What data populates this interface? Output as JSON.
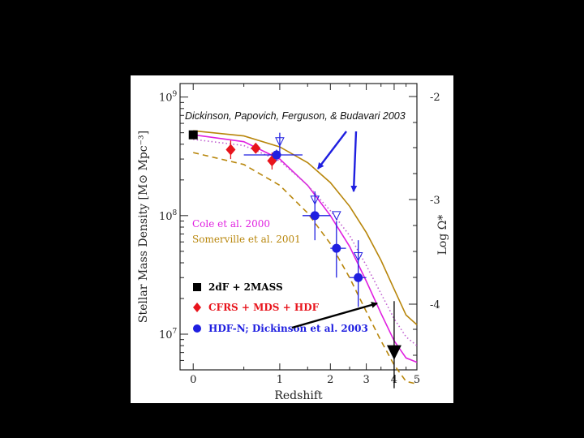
{
  "annotation": "Dickinson, Papovich, Ferguson, & Budavari 2003",
  "chart_data": {
    "type": "scatter",
    "xlabel": "Redshift",
    "ylabel": "Stellar Mass Density [M⊙ Mpc⁻³]",
    "y2label": "Log Ω*",
    "x_axis": "log(1+z)",
    "xlim": [
      -0.1,
      5
    ],
    "ylim": [
      5000000,
      1300000000
    ],
    "yscale": "log",
    "x_ticks": [
      "0",
      "1",
      "2",
      "3",
      "4",
      "5"
    ],
    "y_ticks": [
      {
        "value": 1000000000,
        "label": "10",
        "exp": "9"
      },
      {
        "value": 100000000,
        "label": "10",
        "exp": "8"
      },
      {
        "value": 10000000,
        "label": "10",
        "exp": "7"
      }
    ],
    "y2_ticks": [
      "-2",
      "-3",
      "-4"
    ],
    "series": [
      {
        "name": "2dF + 2MASS",
        "marker": "square",
        "color": "#000000",
        "points": [
          {
            "x": 0.0,
            "y": 480000000
          }
        ]
      },
      {
        "name": "CFRS + MDS + HDF",
        "marker": "diamond",
        "color": "#e8141c",
        "points": [
          {
            "x": 0.35,
            "y": 360000000,
            "ylo": 300000000,
            "yhi": 430000000
          },
          {
            "x": 0.65,
            "y": 370000000
          },
          {
            "x": 0.88,
            "y": 290000000,
            "ylo": 245000000,
            "yhi": 340000000
          }
        ]
      },
      {
        "name": "HDF-N; Dickinson et al. 2003",
        "marker": "circle",
        "color": "#1f1fe0",
        "points": [
          {
            "x": 0.95,
            "y": 325000000,
            "xlo": 0.5,
            "xhi": 1.4,
            "ylo": 290000000,
            "yhi": 360000000
          },
          {
            "x": 1.65,
            "y": 100000000,
            "xlo": 1.4,
            "xhi": 2.0,
            "ylo": 62000000,
            "yhi": 160000000
          },
          {
            "x": 2.15,
            "y": 53000000,
            "xlo": 2.0,
            "xhi": 2.4,
            "ylo": 30000000,
            "yhi": 90000000
          },
          {
            "x": 2.75,
            "y": 30000000,
            "xlo": 2.5,
            "xhi": 3.0,
            "ylo": 17000000,
            "yhi": 62000000
          }
        ]
      },
      {
        "name": "",
        "marker": "triangle-down-filled",
        "color": "#000000",
        "points": [
          {
            "x": 4.0,
            "y": 7000000,
            "ylo": 3500000,
            "yhi": 19000000
          }
        ]
      },
      {
        "name": "",
        "marker": "triangle-down-open",
        "color": "#1f1fe0",
        "points": [
          {
            "x": 1.0,
            "y": 420000000,
            "ylo": 330000000,
            "yhi": 500000000
          },
          {
            "x": 1.65,
            "y": 135000000
          },
          {
            "x": 2.15,
            "y": 100000000
          },
          {
            "x": 2.75,
            "y": 45000000
          }
        ]
      }
    ],
    "models": [
      {
        "name": "Cole et al. 2000",
        "color": "#e020e0",
        "style": "solid",
        "points": [
          [
            0,
            480000000
          ],
          [
            0.5,
            420000000
          ],
          [
            1,
            300000000
          ],
          [
            1.5,
            180000000
          ],
          [
            2,
            100000000
          ],
          [
            2.5,
            55000000
          ],
          [
            3,
            28000000
          ],
          [
            3.5,
            15000000
          ],
          [
            4,
            8800000
          ],
          [
            4.5,
            6300000
          ],
          [
            5,
            5800000
          ]
        ]
      },
      {
        "name": "Cole et al. 2000",
        "color": "#c060d0",
        "style": "dotted",
        "points": [
          [
            0,
            440000000
          ],
          [
            0.5,
            390000000
          ],
          [
            1,
            290000000
          ],
          [
            1.5,
            180000000
          ],
          [
            2,
            110000000
          ],
          [
            2.5,
            68000000
          ],
          [
            3,
            38000000
          ],
          [
            3.5,
            22000000
          ],
          [
            4,
            13500000
          ],
          [
            4.5,
            9500000
          ],
          [
            5,
            8000000
          ]
        ]
      },
      {
        "name": "Somerville et al. 2001",
        "color": "#b8860b",
        "style": "solid",
        "points": [
          [
            0,
            520000000
          ],
          [
            0.5,
            470000000
          ],
          [
            1,
            380000000
          ],
          [
            1.5,
            280000000
          ],
          [
            2,
            190000000
          ],
          [
            2.5,
            120000000
          ],
          [
            3,
            72000000
          ],
          [
            3.5,
            42000000
          ],
          [
            4,
            24000000
          ],
          [
            4.5,
            14500000
          ],
          [
            5,
            12000000
          ]
        ]
      },
      {
        "name": "Somerville et al. 2001",
        "color": "#b8860b",
        "style": "dashed",
        "points": [
          [
            0,
            340000000
          ],
          [
            0.5,
            270000000
          ],
          [
            1,
            180000000
          ],
          [
            1.5,
            105000000
          ],
          [
            2,
            58000000
          ],
          [
            2.5,
            30000000
          ],
          [
            3,
            15500000
          ],
          [
            3.5,
            8800000
          ],
          [
            4,
            5500000
          ],
          [
            4.5,
            4000000
          ],
          [
            5,
            3800000
          ]
        ]
      }
    ],
    "legend": [
      {
        "label": "Cole et al. 2000",
        "color": "#e020e0"
      },
      {
        "label": "Somerville et al. 2001",
        "color": "#b8860b"
      },
      {
        "label": "2dF + 2MASS",
        "color": "#000000",
        "marker": "square"
      },
      {
        "label": "CFRS + MDS + HDF",
        "color": "#e8141c",
        "marker": "diamond"
      },
      {
        "label": "HDF-N; Dickinson et al. 2003",
        "color": "#1f1fe0",
        "marker": "circle"
      }
    ],
    "arrows": [
      {
        "color": "#1f1fe0",
        "target": "HDF-N points near z 1.5"
      },
      {
        "color": "#1f1fe0",
        "target": "Somerville et al. 2001 curve"
      },
      {
        "color": "#000000",
        "target": "z 4 upper limit"
      }
    ]
  }
}
